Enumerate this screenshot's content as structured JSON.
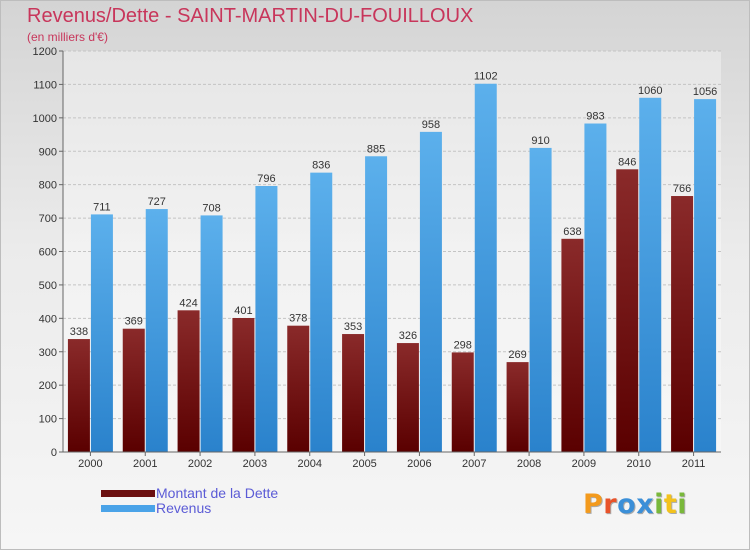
{
  "title": "Revenus/Dette - SAINT-MARTIN-DU-FOUILLOUX",
  "subtitle": "(en milliers d'€)",
  "logo_text": "Proxiti",
  "legend": [
    {
      "label": "Montant de la Dette",
      "color": "#7a1515"
    },
    {
      "label": "Revenus",
      "color": "#4aa3e8"
    }
  ],
  "chart_data": {
    "type": "bar",
    "categories": [
      "2000",
      "2001",
      "2002",
      "2003",
      "2004",
      "2005",
      "2006",
      "2007",
      "2008",
      "2009",
      "2010",
      "2011"
    ],
    "series": [
      {
        "name": "Montant de la Dette",
        "color": "#7a1515",
        "values": [
          338,
          369,
          424,
          401,
          378,
          353,
          326,
          298,
          269,
          638,
          846,
          766
        ]
      },
      {
        "name": "Revenus",
        "color": "#4aa3e8",
        "values": [
          711,
          727,
          708,
          796,
          836,
          885,
          958,
          1102,
          910,
          983,
          1060,
          1056
        ]
      }
    ],
    "ylim": [
      0,
      1200
    ],
    "yticks": [
      0,
      100,
      200,
      300,
      400,
      500,
      600,
      700,
      800,
      900,
      1000,
      1100,
      1200
    ],
    "grid": true,
    "legend_position": "bottom-left"
  }
}
